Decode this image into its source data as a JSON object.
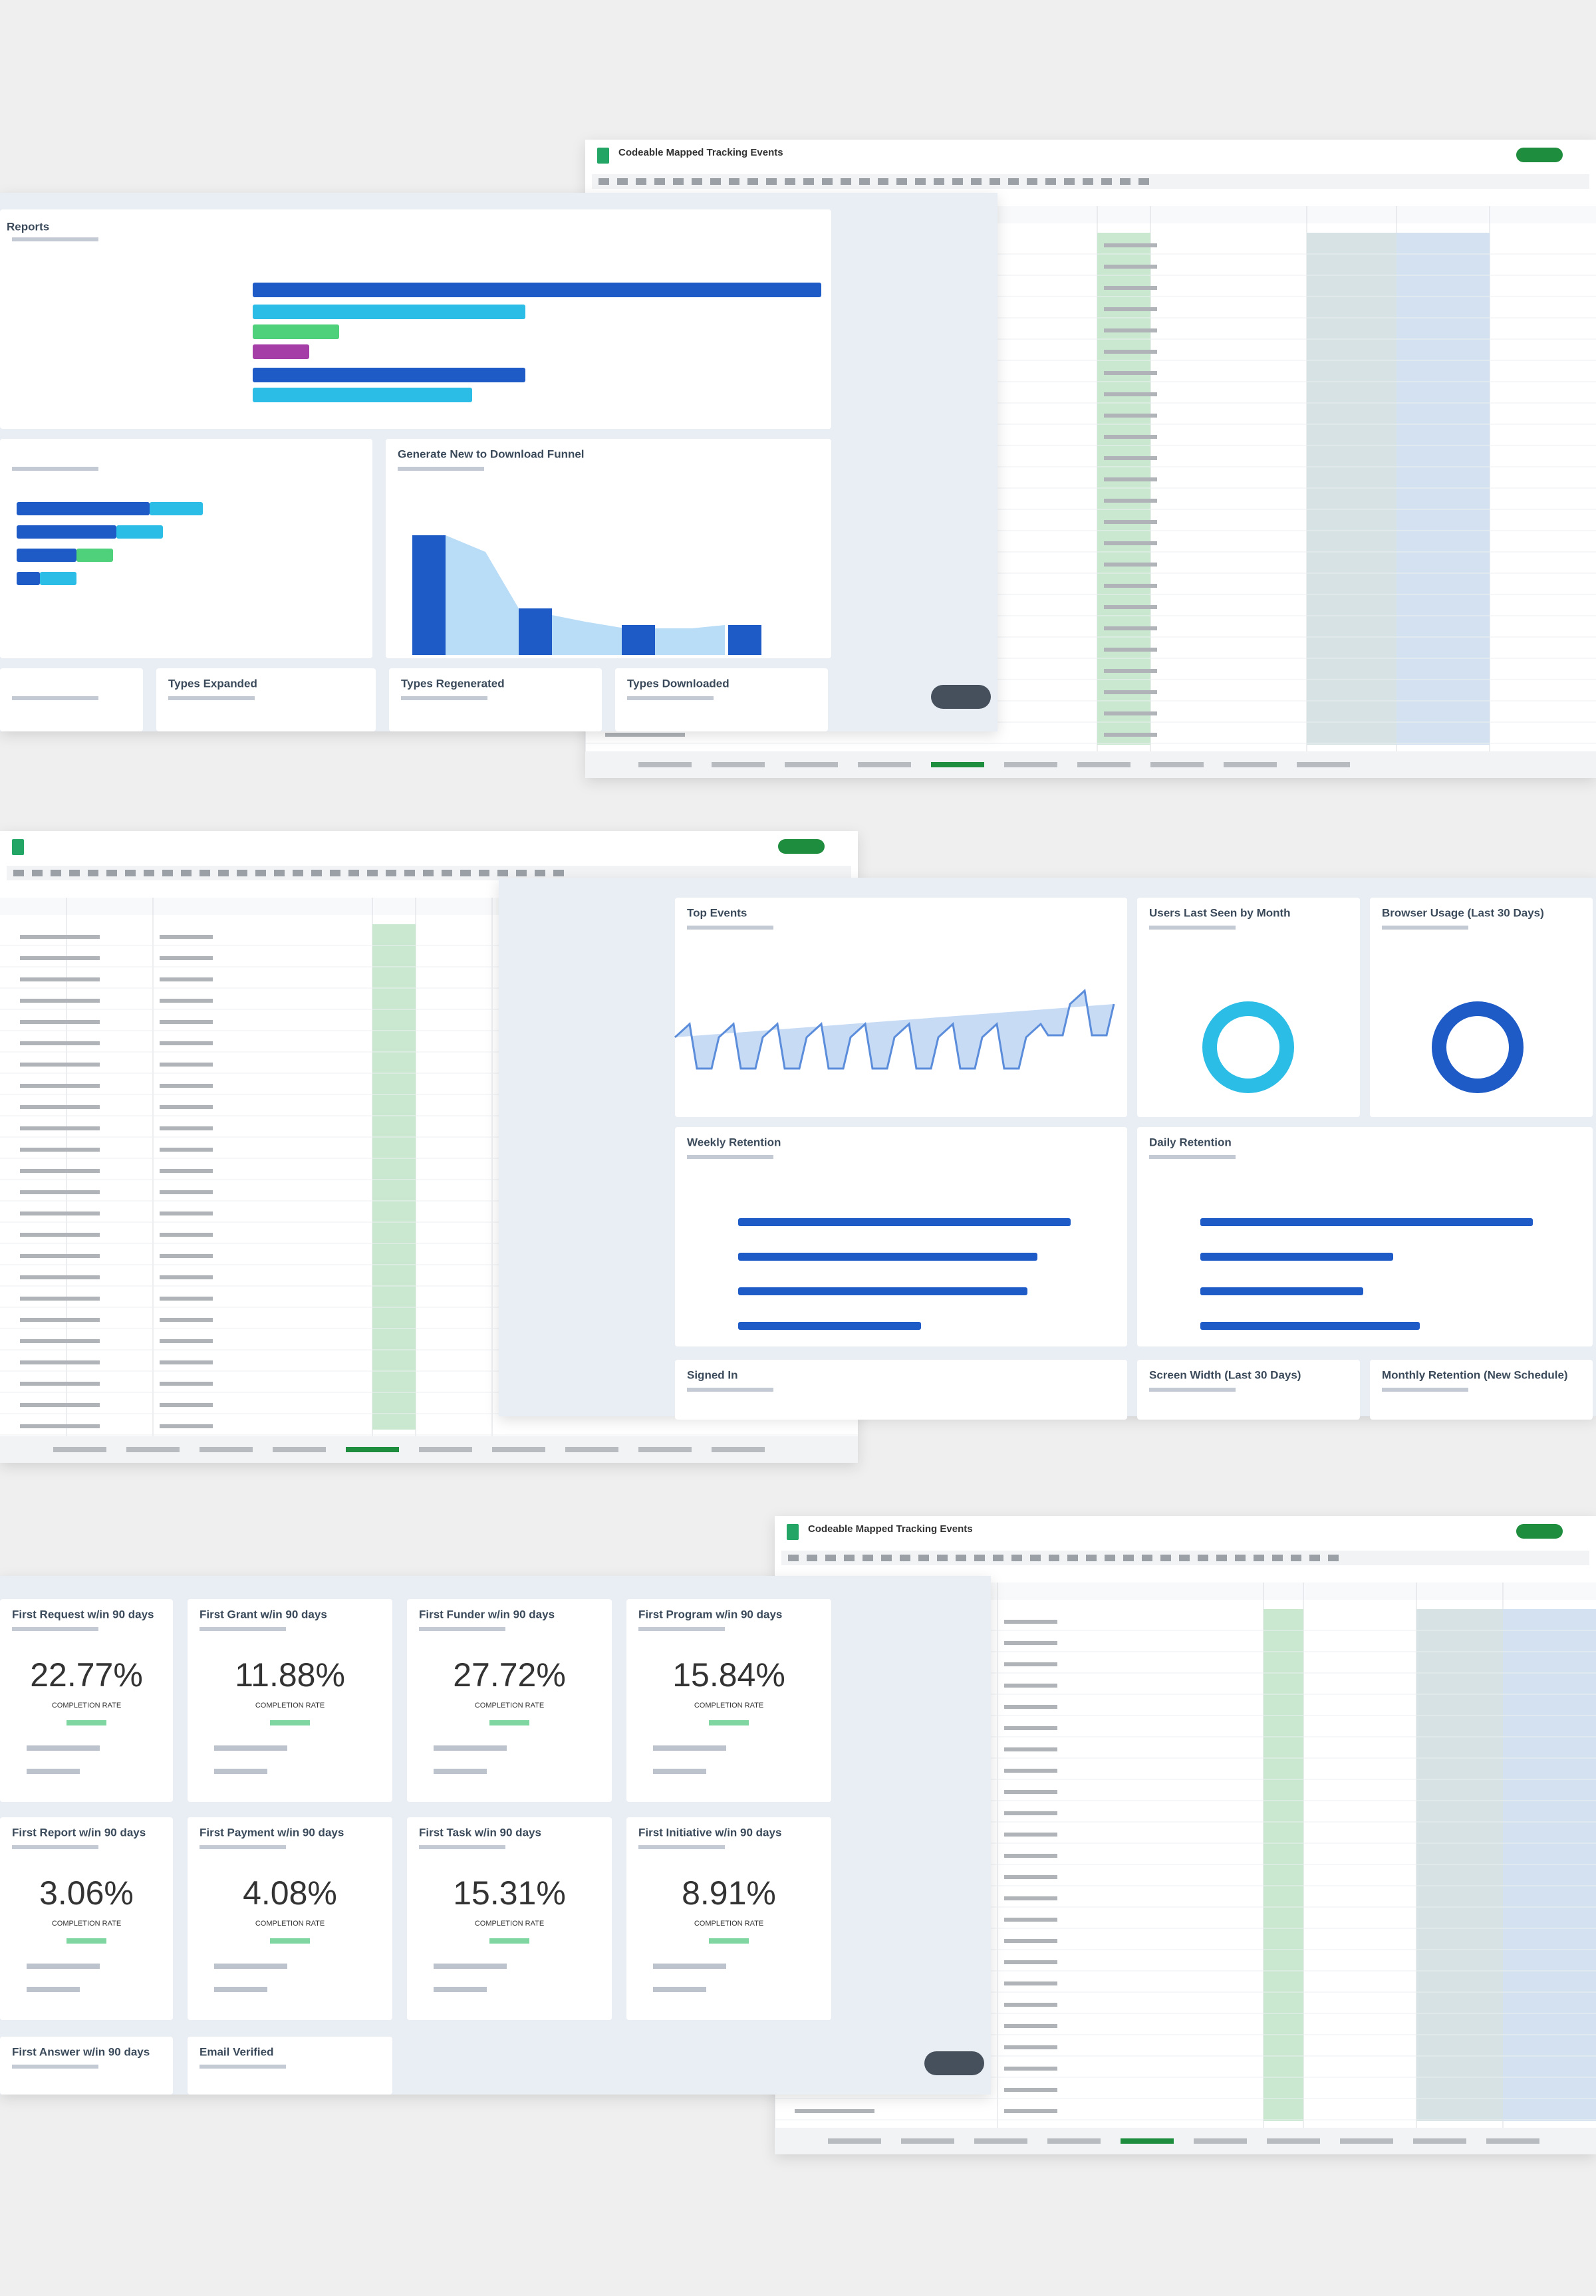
{
  "spreadsheet": {
    "title": "Codeable Mapped Tracking Events"
  },
  "dashboard_top": {
    "title": "Reports",
    "panels": [
      "Generate New to Download Funnel",
      "Types Expanded",
      "Types Regenerated",
      "Types Downloaded"
    ]
  },
  "dashboard_middle": {
    "panels": [
      "Top Events",
      "Users Last Seen by Month",
      "Browser Usage (Last 30 Days)",
      "Weekly Retention",
      "Daily Retention",
      "Signed In",
      "Screen Width (Last 30 Days)",
      "Monthly Retention (New Schedule)"
    ]
  },
  "dashboard_bottom": {
    "caption": "COMPLETION RATE",
    "cards": [
      {
        "title": "First Request w/in 90 days",
        "rate": "22.77%"
      },
      {
        "title": "First Grant w/in 90 days",
        "rate": "11.88%"
      },
      {
        "title": "First Funder w/in 90 days",
        "rate": "27.72%"
      },
      {
        "title": "First Program w/in 90 days",
        "rate": "15.84%"
      },
      {
        "title": "First Report w/in 90 days",
        "rate": "3.06%"
      },
      {
        "title": "First Payment w/in 90 days",
        "rate": "4.08%"
      },
      {
        "title": "First Task w/in 90 days",
        "rate": "15.31%"
      },
      {
        "title": "First Initiative w/in 90 days",
        "rate": "8.91%"
      }
    ],
    "extra_cards": [
      "First Answer w/in 90 days",
      "Email Verified"
    ]
  }
}
